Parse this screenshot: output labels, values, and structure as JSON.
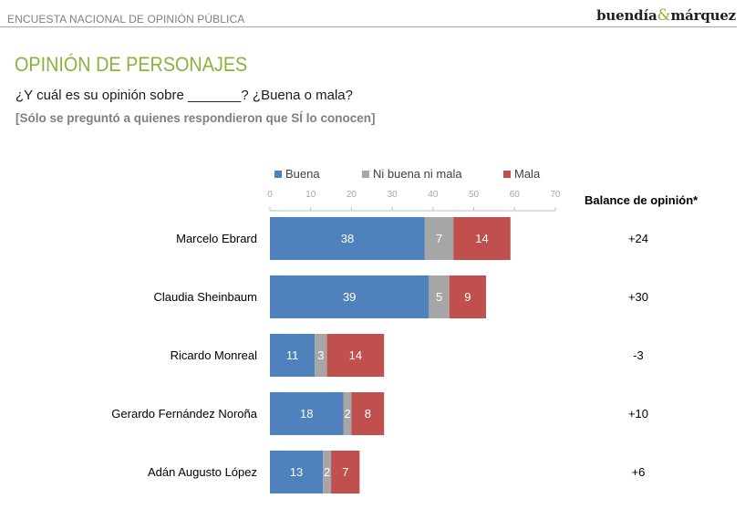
{
  "header": {
    "survey_name": "ENCUESTA NACIONAL DE OPINIÓN PÚBLICA",
    "brand_left": "buendía",
    "brand_amp": "&",
    "brand_right": "márquez"
  },
  "title": "OPINIÓN DE PERSONAJES",
  "question": "¿Y cuál es su opinión sobre _______? ¿Buena o mala?",
  "note": "[Sólo se preguntó a quienes respondieron que SÍ lo conocen]",
  "balance_header": "Balance de opinión*",
  "colors": {
    "buena": "#4f81bd",
    "ni_buena_ni_mala": "#a6a6a6",
    "mala": "#c0504d",
    "title": "#8ab33e"
  },
  "chart_data": {
    "type": "bar",
    "orientation": "horizontal",
    "stacked": true,
    "categories": [
      "Marcelo Ebrard",
      "Claudia Sheinbaum",
      "Ricardo Monreal",
      "Gerardo Fernández Noroña",
      "Adán Augusto López"
    ],
    "series": [
      {
        "name": "Buena",
        "values": [
          38,
          39,
          11,
          18,
          13
        ],
        "color": "#4f81bd"
      },
      {
        "name": "Ni buena ni mala",
        "values": [
          7,
          5,
          3,
          2,
          2
        ],
        "color": "#a6a6a6"
      },
      {
        "name": "Mala",
        "values": [
          14,
          9,
          14,
          8,
          7
        ],
        "color": "#c0504d"
      }
    ],
    "balance": [
      "+24",
      "+30",
      "-3",
      "+10",
      "+6"
    ],
    "xlim": [
      0,
      70
    ],
    "xticks": [
      0,
      10,
      20,
      30,
      40,
      50,
      60,
      70
    ],
    "legend_position": "top",
    "data_labels": true,
    "grid": false
  }
}
